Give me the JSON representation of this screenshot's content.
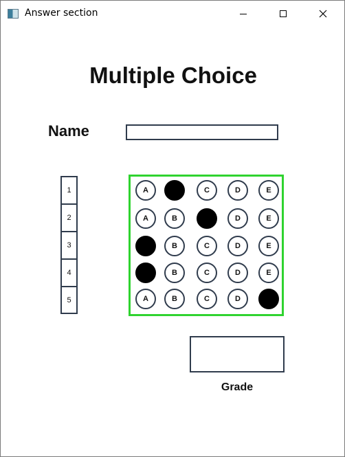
{
  "window": {
    "title": "Answer section",
    "minimize_glyph": "",
    "maximize_glyph": "",
    "close_glyph": "✕"
  },
  "form": {
    "heading": "Multiple Choice",
    "name_label": "Name",
    "name_value": "",
    "grade_label": "Grade",
    "grade_value": ""
  },
  "questions": [
    {
      "number": "1",
      "options": [
        "A",
        "B",
        "C",
        "D",
        "E"
      ],
      "selected": "B"
    },
    {
      "number": "2",
      "options": [
        "A",
        "B",
        "C",
        "D",
        "E"
      ],
      "selected": "C"
    },
    {
      "number": "3",
      "options": [
        "A",
        "B",
        "C",
        "D",
        "E"
      ],
      "selected": "A"
    },
    {
      "number": "4",
      "options": [
        "A",
        "B",
        "C",
        "D",
        "E"
      ],
      "selected": "A"
    },
    {
      "number": "5",
      "options": [
        "A",
        "B",
        "C",
        "D",
        "E"
      ],
      "selected": "E"
    }
  ],
  "colors": {
    "grid_border": "#2fd32f",
    "outline": "#2f3b4c",
    "fill": "#000000"
  }
}
